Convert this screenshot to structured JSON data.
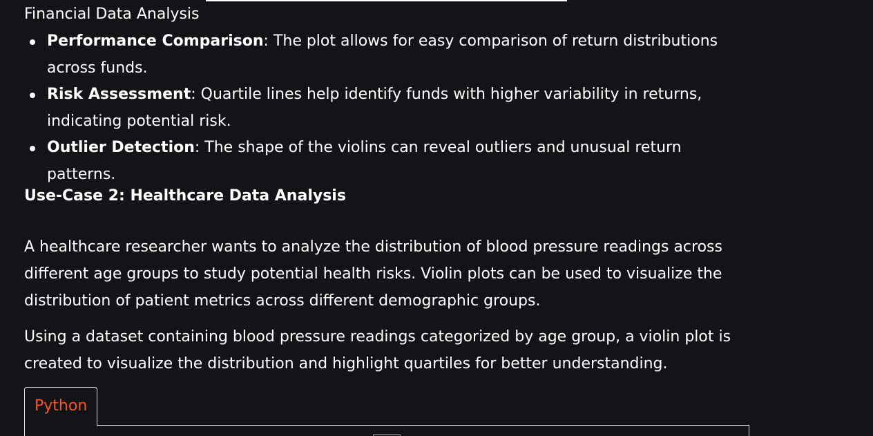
{
  "caption": "Financial Data Analysis",
  "bullets": [
    {
      "title": "Performance Comparison",
      "text": ": The plot allows for easy comparison of return distributions across funds."
    },
    {
      "title": "Risk Assessment",
      "text": ": Quartile lines help identify funds with higher variability in returns, indicating potential risk."
    },
    {
      "title": "Outlier Detection",
      "text": ": The shape of the violins can reveal outliers and unusual return patterns."
    }
  ],
  "heading": "Use-Case 2: Healthcare Data Analysis",
  "paragraphs": [
    "A healthcare researcher wants to analyze the distribution of blood pressure readings across different age groups to study potential health risks. Violin plots can be used to visualize the distribution of patient metrics across different demographic groups.",
    "Using a dataset containing blood pressure readings categorized by age group, a violin plot is created to visualize the distribution and highlight quartiles for better understanding."
  ],
  "code_tab": {
    "label": "Python"
  },
  "colors": {
    "background": "#131417",
    "text": "#ffffff",
    "tab_accent": "#f2562b",
    "border": "#e6e6e6"
  }
}
